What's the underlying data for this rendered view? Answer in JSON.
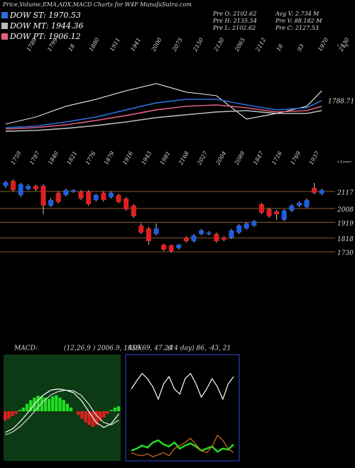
{
  "header": {
    "title": "Price,Volume,EMA,ADX,MACD Charts for W4F MunafaSutra.com",
    "info": [
      "Pre  O: 2102.62",
      "Avg  V: 2.734  M",
      "Pre  H: 2135.54",
      "Pre  V: 88.182  M",
      "Pre  L: 2102.62",
      "Pre  C: 2127.53"
    ]
  },
  "chart_data": [
    {
      "type": "line",
      "top_labels": [
        "1789",
        "1799",
        "18",
        "1880",
        "1911",
        "1941",
        "2000",
        "2075",
        "2150",
        "2130",
        "2065",
        "2112",
        "18",
        "93",
        "1970",
        "2130"
      ],
      "bottom_labels": [
        "1759",
        "1787",
        "1840",
        "1821",
        "1776",
        "1879",
        "1916",
        "1943",
        "1981",
        "2168",
        "2027",
        "2004",
        "2089",
        "1847",
        "1716",
        "1769",
        "1937"
      ],
      "last_label": "1788.71",
      "corner_labels": [
        "x Tops",
        "x Lower"
      ],
      "x": [
        0,
        4,
        8,
        12,
        16,
        20,
        24,
        28,
        32,
        36,
        40,
        42
      ],
      "ylim": [
        1700,
        2300
      ],
      "series": [
        {
          "color": "#ffffff",
          "values": [
            1869,
            1906,
            1963,
            2000,
            2045,
            2083,
            2038,
            2019,
            1895,
            1925,
            1963,
            2045
          ]
        },
        {
          "name": "DOW ST: 1970.53",
          "color": "#2a6fdb",
          "values": [
            1850,
            1858,
            1880,
            1906,
            1944,
            1981,
            2000,
            2000,
            1970,
            1944,
            1955,
            1993
          ]
        },
        {
          "name": "DOW MT: 1944.36",
          "color": "#bbbbbb",
          "values": [
            1831,
            1835,
            1846,
            1861,
            1880,
            1903,
            1918,
            1933,
            1940,
            1925,
            1925,
            1940
          ]
        },
        {
          "name": "DOW PT: 1906.12",
          "color": "#e0607e",
          "values": [
            1843,
            1850,
            1865,
            1888,
            1914,
            1944,
            1963,
            1970,
            1955,
            1933,
            1940,
            1963
          ]
        }
      ]
    },
    {
      "type": "candlestick",
      "up_color": "#1e5fe0",
      "down_color": "#e02020",
      "grid_color": "#8a5a2a",
      "ylim": [
        1548,
        2208
      ],
      "yticks": [
        2117,
        2008,
        1919,
        1818,
        1730
      ],
      "open": [
        2153,
        2185,
        2094,
        2131,
        2153,
        2153,
        2026,
        2108,
        2094,
        2117,
        2117,
        2117,
        2062,
        2108,
        2081,
        2094,
        2071,
        2026,
        1898,
        1880,
        1844,
        1775,
        1771,
        1753,
        1821,
        1798,
        1844,
        1844,
        1844,
        1821,
        1821,
        1853,
        1880,
        1898,
        2035,
        2003,
        1989,
        1935,
        1994,
        2026,
        2017,
        2140,
        2103
      ],
      "high": [
        2185,
        2194,
        2172,
        2163,
        2160,
        2163,
        2075,
        2117,
        2135,
        2131,
        2126,
        2126,
        2103,
        2117,
        2117,
        2103,
        2081,
        2035,
        1912,
        1889,
        1912,
        1780,
        1776,
        1780,
        1830,
        1844,
        1876,
        1862,
        1853,
        1830,
        1876,
        1907,
        1921,
        1935,
        2044,
        2012,
        1998,
        2003,
        2035,
        2053,
        2071,
        2172,
        2135
      ],
      "low": [
        2140,
        2117,
        2081,
        2126,
        2120,
        1971,
        2017,
        2040,
        2085,
        2108,
        2062,
        2026,
        2053,
        2053,
        2071,
        2040,
        1994,
        1949,
        1844,
        1775,
        1835,
        1735,
        1725,
        1744,
        1789,
        1789,
        1835,
        1835,
        1789,
        1798,
        1812,
        1844,
        1871,
        1889,
        1971,
        1949,
        1935,
        1926,
        1985,
        2017,
        2008,
        2099,
        2094
      ],
      "close": [
        2176,
        2126,
        2163,
        2153,
        2131,
        2026,
        2062,
        2049,
        2126,
        2126,
        2071,
        2035,
        2094,
        2062,
        2108,
        2049,
        2003,
        1958,
        1853,
        1798,
        1880,
        1744,
        1734,
        1775,
        1798,
        1835,
        1867,
        1853,
        1798,
        1807,
        1867,
        1898,
        1912,
        1926,
        1980,
        1958,
        1971,
        1994,
        2026,
        2044,
        2062,
        2108,
        2126
      ]
    },
    {
      "type": "macd",
      "title": "MACD:",
      "subtitle": "(12,26,9 ) 2006.9, 1959.69, 47.24",
      "background": "#0b3a14",
      "pos_color": "#22dd22",
      "neg_color": "#e02020",
      "ylim": [
        -80,
        80
      ],
      "histogram": [
        -15,
        -12,
        -8,
        -4,
        2,
        6,
        12,
        18,
        22,
        25,
        24,
        22,
        20,
        24,
        26,
        22,
        18,
        12,
        6,
        0,
        -6,
        -12,
        -18,
        -22,
        -25,
        -22,
        -16,
        -10,
        -4,
        2,
        6,
        8
      ],
      "series": [
        {
          "color": "#ffffff",
          "values": [
            -34,
            -28,
            -16,
            -2,
            14,
            26,
            34,
            36,
            34,
            30,
            18,
            0,
            -18,
            -26,
            -20,
            -4
          ]
        },
        {
          "color": "#dddddd",
          "values": [
            -38,
            -33,
            -24,
            -12,
            2,
            16,
            26,
            32,
            34,
            33,
            26,
            12,
            -6,
            -18,
            -22,
            -14
          ]
        }
      ]
    },
    {
      "type": "adx",
      "title": "ADX",
      "subtitle": "(14 day) 86, -43, 21",
      "border": "#2a4fd0",
      "ylim": [
        0,
        100
      ],
      "series": [
        {
          "color": "#ffffff",
          "values": [
            70,
            78,
            85,
            80,
            72,
            60,
            75,
            82,
            70,
            65,
            80,
            85,
            75,
            62,
            70,
            80,
            72,
            60,
            75,
            82
          ]
        },
        {
          "color": "#22dd22",
          "values": [
            10,
            12,
            15,
            13,
            18,
            20,
            16,
            14,
            18,
            12,
            15,
            17,
            14,
            10,
            12,
            14,
            9,
            12,
            11,
            16
          ]
        },
        {
          "color": "#d07020",
          "values": [
            8,
            6,
            5,
            7,
            4,
            6,
            8,
            5,
            12,
            15,
            18,
            22,
            16,
            10,
            8,
            14,
            25,
            20,
            12,
            8
          ]
        }
      ]
    }
  ]
}
